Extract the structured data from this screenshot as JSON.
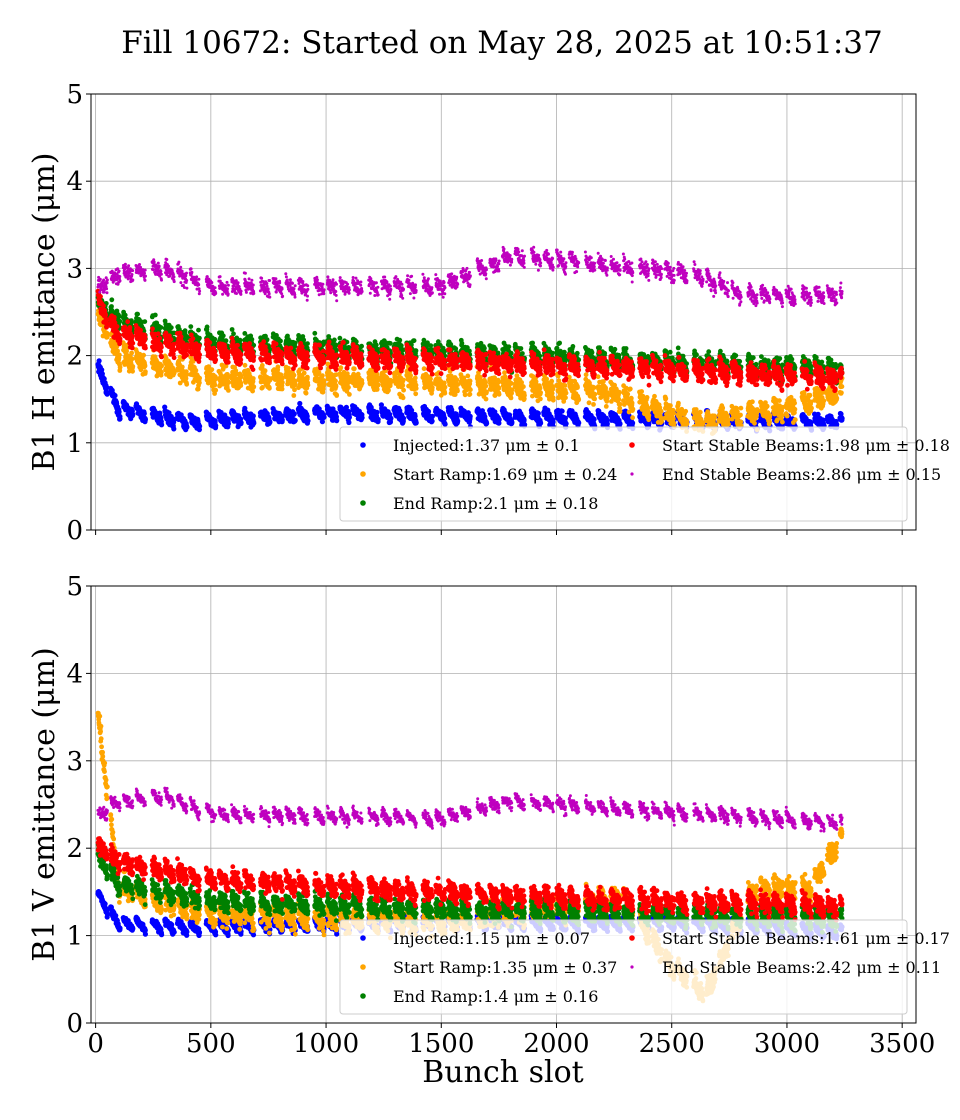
{
  "figure": {
    "title": "Fill 10672: Started on May 28, 2025 at 10:51:37",
    "xlabel": "Bunch slot"
  },
  "colors": {
    "Injected": "#0000ff",
    "Start Ramp": "#ffa500",
    "End Ramp": "#008000",
    "Start Stable Beams": "#ff0000",
    "End Stable Beams": "#bf00bf"
  },
  "chart_data": [
    {
      "type": "scatter",
      "ylabel": "B1 H emittance (μm)",
      "xlim": [
        -20,
        3560
      ],
      "ylim": [
        0,
        5
      ],
      "xticks": [
        0,
        500,
        1000,
        1500,
        2000,
        2500,
        3000,
        3500
      ],
      "yticks": [
        0,
        1,
        2,
        3,
        4,
        5
      ],
      "grid": true,
      "legend_position": "lower-right",
      "x_range_filled": [
        10,
        3240
      ],
      "series": [
        {
          "name": "Injected",
          "mean": 1.37,
          "std": 0.1,
          "legend_text": "Injected:1.37 μm ± 0.1",
          "approx_level_by_bunch_slot": [
            [
              0,
              1.95
            ],
            [
              100,
              1.45
            ],
            [
              400,
              1.3
            ],
            [
              1000,
              1.4
            ],
            [
              2000,
              1.35
            ],
            [
              2700,
              1.3
            ],
            [
              3240,
              1.3
            ]
          ]
        },
        {
          "name": "Start Ramp",
          "mean": 1.69,
          "std": 0.24,
          "legend_text": "Start Ramp:1.69 μm ± 0.24",
          "approx_level_by_bunch_slot": [
            [
              0,
              2.6
            ],
            [
              100,
              2.05
            ],
            [
              500,
              1.8
            ],
            [
              1500,
              1.75
            ],
            [
              2200,
              1.65
            ],
            [
              2600,
              1.3
            ],
            [
              3000,
              1.45
            ],
            [
              3240,
              1.65
            ]
          ]
        },
        {
          "name": "End Ramp",
          "mean": 2.1,
          "std": 0.18,
          "legend_text": "End Ramp:2.1 μm ± 0.18",
          "approx_level_by_bunch_slot": [
            [
              0,
              2.7
            ],
            [
              100,
              2.45
            ],
            [
              500,
              2.2
            ],
            [
              1500,
              2.1
            ],
            [
              2500,
              1.98
            ],
            [
              3240,
              1.9
            ]
          ]
        },
        {
          "name": "Start Stable Beams",
          "mean": 1.98,
          "std": 0.18,
          "legend_text": "Start Stable Beams:1.98 μm ± 0.18",
          "approx_level_by_bunch_slot": [
            [
              0,
              2.7
            ],
            [
              100,
              2.3
            ],
            [
              500,
              2.1
            ],
            [
              1500,
              2.0
            ],
            [
              2500,
              1.9
            ],
            [
              3240,
              1.8
            ]
          ]
        },
        {
          "name": "End Stable Beams",
          "mean": 2.86,
          "std": 0.15,
          "legend_text": "End Stable Beams:2.86 μm ± 0.15",
          "approx_level_by_bunch_slot": [
            [
              0,
              2.8
            ],
            [
              100,
              3.0
            ],
            [
              300,
              3.05
            ],
            [
              500,
              2.85
            ],
            [
              1500,
              2.85
            ],
            [
              1800,
              3.2
            ],
            [
              2600,
              3.0
            ],
            [
              2800,
              2.75
            ],
            [
              3240,
              2.75
            ]
          ]
        }
      ]
    },
    {
      "type": "scatter",
      "ylabel": "B1 V emittance (μm)",
      "xlim": [
        -20,
        3560
      ],
      "ylim": [
        0,
        5
      ],
      "xticks": [
        0,
        500,
        1000,
        1500,
        2000,
        2500,
        3000,
        3500
      ],
      "yticks": [
        0,
        1,
        2,
        3,
        4,
        5
      ],
      "grid": true,
      "legend_position": "lower-right",
      "x_range_filled": [
        10,
        3240
      ],
      "series": [
        {
          "name": "Injected",
          "mean": 1.15,
          "std": 0.07,
          "legend_text": "Injected:1.15 μm ± 0.07",
          "approx_level_by_bunch_slot": [
            [
              0,
              1.55
            ],
            [
              100,
              1.2
            ],
            [
              400,
              1.15
            ],
            [
              1500,
              1.2
            ],
            [
              2500,
              1.2
            ],
            [
              3240,
              1.1
            ]
          ]
        },
        {
          "name": "Start Ramp",
          "mean": 1.35,
          "std": 0.37,
          "legend_text": "Start Ramp:1.35 μm ± 0.37",
          "approx_level_by_bunch_slot": [
            [
              0,
              3.8
            ],
            [
              100,
              1.6
            ],
            [
              500,
              1.3
            ],
            [
              1500,
              1.2
            ],
            [
              2300,
              1.5
            ],
            [
              2500,
              0.7
            ],
            [
              2650,
              0.4
            ],
            [
              2850,
              1.6
            ],
            [
              3100,
              1.6
            ],
            [
              3240,
              2.2
            ]
          ]
        },
        {
          "name": "End Ramp",
          "mean": 1.4,
          "std": 0.16,
          "legend_text": "End Ramp:1.4 μm ± 0.16",
          "approx_level_by_bunch_slot": [
            [
              0,
              2.0
            ],
            [
              100,
              1.65
            ],
            [
              500,
              1.45
            ],
            [
              1500,
              1.35
            ],
            [
              2500,
              1.3
            ],
            [
              3240,
              1.25
            ]
          ]
        },
        {
          "name": "Start Stable Beams",
          "mean": 1.61,
          "std": 0.17,
          "legend_text": "Start Stable Beams:1.61 μm ± 0.17",
          "approx_level_by_bunch_slot": [
            [
              0,
              2.1
            ],
            [
              100,
              1.9
            ],
            [
              500,
              1.7
            ],
            [
              1500,
              1.55
            ],
            [
              2500,
              1.45
            ],
            [
              3240,
              1.4
            ]
          ]
        },
        {
          "name": "End Stable Beams",
          "mean": 2.42,
          "std": 0.11,
          "legend_text": "End Stable Beams:2.42 μm ± 0.11",
          "approx_level_by_bunch_slot": [
            [
              0,
              2.4
            ],
            [
              100,
              2.6
            ],
            [
              300,
              2.65
            ],
            [
              500,
              2.45
            ],
            [
              1500,
              2.4
            ],
            [
              1800,
              2.6
            ],
            [
              2600,
              2.45
            ],
            [
              3240,
              2.35
            ]
          ]
        }
      ]
    }
  ]
}
